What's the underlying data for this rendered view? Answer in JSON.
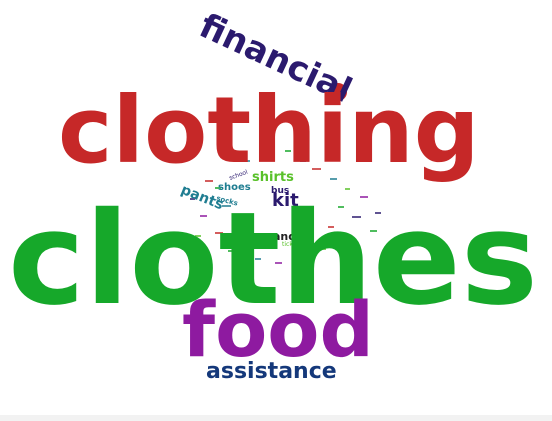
{
  "word_cloud": {
    "colors": {
      "red": "#c62828",
      "green": "#16a82a",
      "purple": "#8e1aa0",
      "navy": "#14387a",
      "indigo": "#2b1a6e",
      "lime": "#59c12a",
      "teal": "#1f7d91"
    },
    "words": [
      {
        "text": "clothes",
        "color": "#16a82a"
      },
      {
        "text": "clothing",
        "color": "#c62828"
      },
      {
        "text": "food",
        "color": "#8e1aa0"
      },
      {
        "text": "financial",
        "color": "#2b1a6e"
      },
      {
        "text": "assistance",
        "color": "#14387a"
      },
      {
        "text": "kit",
        "color": "#2b1a6e"
      },
      {
        "text": "shirts",
        "color": "#59c12a"
      },
      {
        "text": "pants",
        "color": "#1f7d91"
      },
      {
        "text": "shoes",
        "color": "#1f7d91"
      },
      {
        "text": "and",
        "color": "#222222"
      },
      {
        "text": "bus",
        "color": "#2b1a6e"
      },
      {
        "text": "socks",
        "color": "#1f7d91"
      },
      {
        "text": "tickets",
        "color": "#59c12a"
      },
      {
        "text": "school",
        "color": "#2b1a6e"
      }
    ]
  }
}
